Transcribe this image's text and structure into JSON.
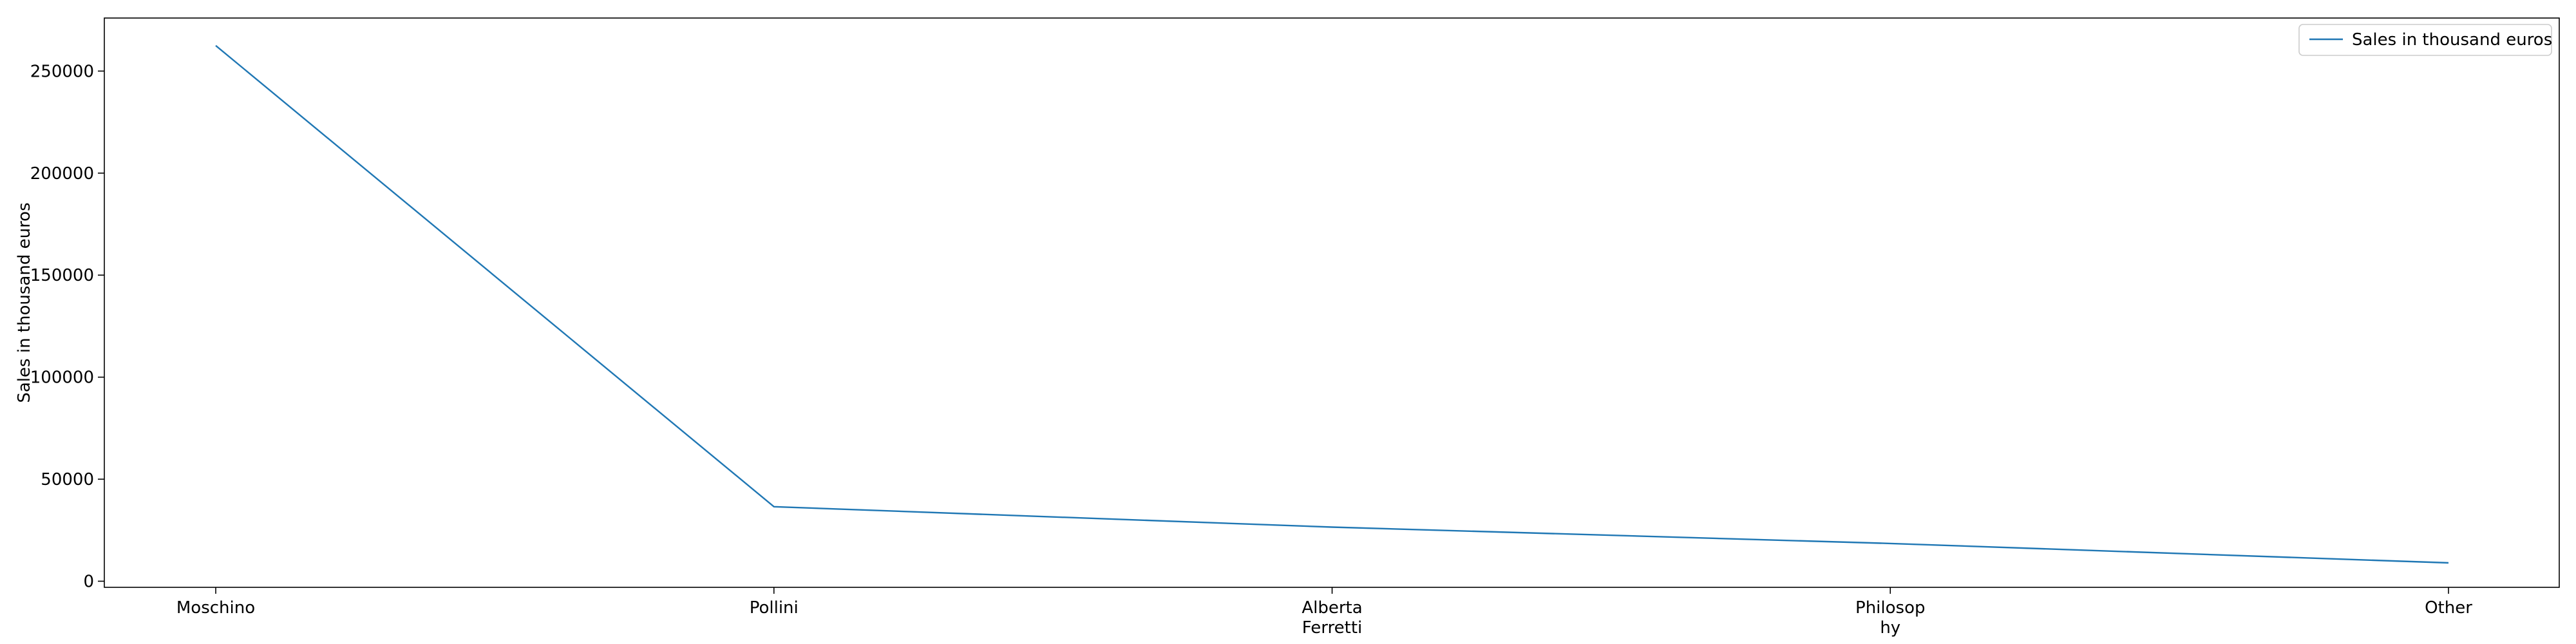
{
  "chart_data": {
    "type": "line",
    "title": "",
    "xlabel": "",
    "ylabel": "Sales in thousand euros",
    "categories": [
      "Moschino",
      "Pollini",
      "Alberta\nFerretti",
      "Philosop\nhy",
      "Other"
    ],
    "series": [
      {
        "name": "Sales in thousand euros",
        "values": [
          262500,
          36500,
          26500,
          18500,
          9000
        ],
        "color": "#1f77b4"
      }
    ],
    "ylim": [
      -3000,
      276000
    ],
    "yticks": [
      0,
      50000,
      100000,
      150000,
      200000,
      250000
    ],
    "ytick_labels": [
      "0",
      "50000",
      "100000",
      "150000",
      "200000",
      "250000"
    ],
    "grid": false,
    "legend_position": "top-right"
  }
}
